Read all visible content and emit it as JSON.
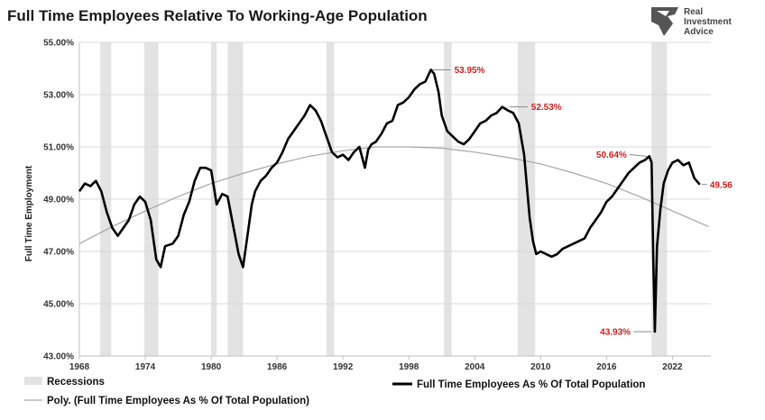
{
  "header": {
    "title": "Full Time Employees Relative To Working-Age Population",
    "logo_lines": [
      "Real",
      "Investment",
      "Advice"
    ],
    "logo_icon": "eagle-icon"
  },
  "colors": {
    "series": "#000000",
    "trend": "#a6a6a6",
    "recession": "#e3e3e3",
    "annotation": "#cc1f1f",
    "grid": "#d9d9d9"
  },
  "chart_data": {
    "type": "line",
    "title": "Full Time Employees Relative To Working-Age Population",
    "xlabel": "",
    "ylabel": "Full Time Employment",
    "xlim": [
      1968,
      2025.5
    ],
    "ylim": [
      43,
      55
    ],
    "grid": "horizontal",
    "legend_position": "bottom",
    "x_ticks": [
      "1968",
      "1974",
      "1980",
      "1986",
      "1992",
      "1998",
      "2004",
      "2010",
      "2016",
      "2022"
    ],
    "y_ticks": [
      "43.00%",
      "45.00%",
      "47.00%",
      "49.00%",
      "51.00%",
      "53.00%",
      "55.00%"
    ],
    "recessions": [
      {
        "start": 1969.9,
        "end": 1970.9
      },
      {
        "start": 1973.9,
        "end": 1975.2
      },
      {
        "start": 1980.0,
        "end": 1980.5
      },
      {
        "start": 1981.5,
        "end": 1982.9
      },
      {
        "start": 1990.5,
        "end": 1991.2
      },
      {
        "start": 2001.2,
        "end": 2001.9
      },
      {
        "start": 2007.9,
        "end": 2009.5
      },
      {
        "start": 2020.1,
        "end": 2021.5
      }
    ],
    "series": [
      {
        "name": "Full Time Employees As % Of Total Population",
        "x": [
          1968,
          1968.5,
          1969,
          1969.5,
          1970,
          1970.5,
          1971,
          1971.5,
          1972,
          1972.5,
          1973,
          1973.5,
          1974,
          1974.5,
          1975,
          1975.4,
          1975.8,
          1976.5,
          1977,
          1977.5,
          1978,
          1978.5,
          1979,
          1979.5,
          1980,
          1980.5,
          1981,
          1981.5,
          1982,
          1982.5,
          1982.9,
          1983.3,
          1983.7,
          1984,
          1984.5,
          1985,
          1985.5,
          1986,
          1986.5,
          1987,
          1987.5,
          1988,
          1988.5,
          1989,
          1989.5,
          1990,
          1990.5,
          1991,
          1991.5,
          1992,
          1992.5,
          1993,
          1993.5,
          1994,
          1994.3,
          1994.6,
          1995,
          1995.5,
          1996,
          1996.5,
          1997,
          1997.5,
          1998,
          1998.5,
          1999,
          1999.5,
          2000,
          2000.3,
          2000.7,
          2001,
          2001.5,
          2002,
          2002.5,
          2003,
          2003.5,
          2004,
          2004.5,
          2005,
          2005.5,
          2006,
          2006.5,
          2007,
          2007.5,
          2008,
          2008.5,
          2009,
          2009.3,
          2009.6,
          2010,
          2010.5,
          2011,
          2011.5,
          2012,
          2012.5,
          2013,
          2013.5,
          2014,
          2014.5,
          2015,
          2015.5,
          2016,
          2016.5,
          2017,
          2017.5,
          2018,
          2018.5,
          2019,
          2019.5,
          2019.9,
          2020.1,
          2020.25,
          2020.4,
          2020.6,
          2020.9,
          2021.2,
          2021.6,
          2022,
          2022.5,
          2023,
          2023.5,
          2024,
          2024.5
        ],
        "values": [
          49.3,
          49.6,
          49.5,
          49.7,
          49.3,
          48.5,
          47.9,
          47.6,
          47.9,
          48.2,
          48.8,
          49.1,
          48.9,
          48.2,
          46.7,
          46.4,
          47.2,
          47.3,
          47.6,
          48.4,
          48.9,
          49.7,
          50.2,
          50.2,
          50.1,
          48.8,
          49.2,
          49.1,
          48.0,
          46.9,
          46.4,
          47.6,
          48.8,
          49.3,
          49.7,
          49.9,
          50.2,
          50.4,
          50.8,
          51.3,
          51.6,
          51.9,
          52.2,
          52.6,
          52.4,
          52.0,
          51.4,
          50.8,
          50.6,
          50.7,
          50.5,
          50.8,
          51.0,
          50.2,
          50.9,
          51.1,
          51.2,
          51.5,
          51.9,
          52.0,
          52.6,
          52.7,
          52.9,
          53.2,
          53.4,
          53.5,
          53.95,
          53.8,
          53.1,
          52.2,
          51.6,
          51.4,
          51.2,
          51.1,
          51.3,
          51.6,
          51.9,
          52.0,
          52.2,
          52.3,
          52.53,
          52.4,
          52.3,
          51.9,
          50.7,
          48.3,
          47.4,
          46.9,
          47.0,
          46.9,
          46.8,
          46.9,
          47.1,
          47.2,
          47.3,
          47.4,
          47.5,
          47.9,
          48.2,
          48.5,
          48.9,
          49.1,
          49.4,
          49.7,
          50.0,
          50.2,
          50.4,
          50.5,
          50.64,
          50.4,
          46.8,
          43.93,
          47.2,
          48.6,
          49.6,
          50.1,
          50.4,
          50.5,
          50.3,
          50.4,
          49.8,
          49.56
        ]
      },
      {
        "name": "Poly. (Full Time Employees As % Of Total Population)",
        "x": [
          1968,
          1971,
          1974,
          1977,
          1980,
          1983,
          1986,
          1989,
          1992,
          1995,
          1998,
          2001,
          2004,
          2007,
          2010,
          2013,
          2016,
          2019,
          2022,
          2025.3
        ],
        "values": [
          47.3,
          47.95,
          48.55,
          49.1,
          49.6,
          50.0,
          50.35,
          50.65,
          50.85,
          51.0,
          51.0,
          50.95,
          50.8,
          50.6,
          50.35,
          50.0,
          49.6,
          49.1,
          48.55,
          47.95
        ]
      }
    ],
    "annotations": [
      {
        "label": "53.95%",
        "x": 2000.0,
        "y": 53.95
      },
      {
        "label": "52.53%",
        "x": 2007.0,
        "y": 52.53
      },
      {
        "label": "50.64%",
        "x": 2019.9,
        "y": 50.64
      },
      {
        "label": "43.93%",
        "x": 2020.25,
        "y": 43.93
      },
      {
        "label": "49.56",
        "x": 2024.5,
        "y": 49.56
      }
    ]
  },
  "legend": {
    "recessions_label": "Recessions",
    "series_label": "Full Time Employees As % Of Total Population",
    "trend_label": "Poly. (Full Time Employees As % Of Total Population)"
  }
}
